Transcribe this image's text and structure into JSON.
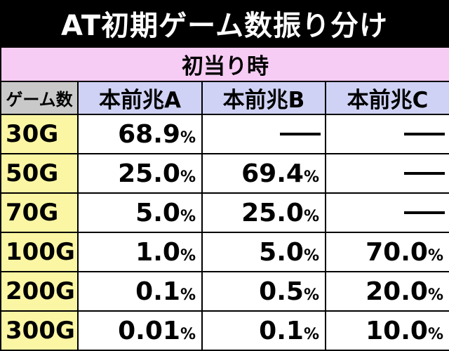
{
  "title": "AT初期ゲーム数振り分け",
  "section_label": "初当り時",
  "table": {
    "corner_label": "ゲーム数",
    "columns": [
      "本前兆A",
      "本前兆B",
      "本前兆C"
    ],
    "percent_unit": "%",
    "empty_mark": "dash",
    "rows": [
      {
        "label": "30G",
        "values": [
          "68.9",
          null,
          null
        ]
      },
      {
        "label": "50G",
        "values": [
          "25.0",
          "69.4",
          null
        ]
      },
      {
        "label": "70G",
        "values": [
          "5.0",
          "25.0",
          null
        ]
      },
      {
        "label": "100G",
        "values": [
          "1.0",
          "5.0",
          "70.0"
        ]
      },
      {
        "label": "200G",
        "values": [
          "0.1",
          "0.5",
          "20.0"
        ]
      },
      {
        "label": "300G",
        "values": [
          "0.01",
          "0.1",
          "10.0"
        ]
      }
    ]
  },
  "colors": {
    "title_background": "#000000",
    "section_background": "#f6cbf4",
    "corner_background": "#c9c9c9",
    "column_header_background": "#cfd2f4",
    "row_header_background": "#fbf6a3",
    "cell_background": "#ffffff"
  }
}
